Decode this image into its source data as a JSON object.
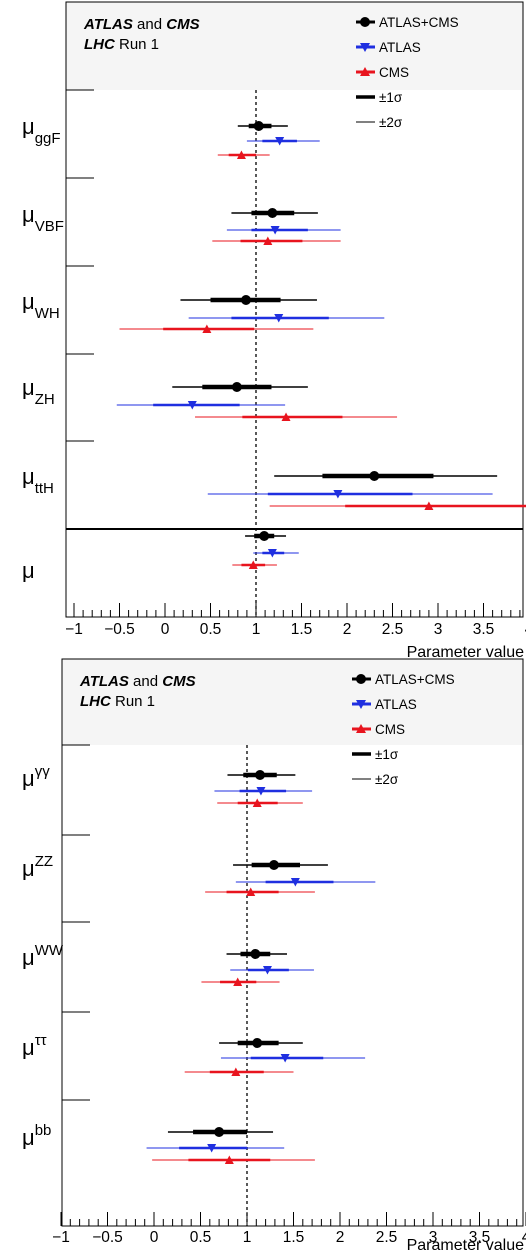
{
  "colors": {
    "combined": "#000000",
    "atlas": "#1f2fe0",
    "cms": "#e8141e",
    "header_bg": "#f5f5f5"
  },
  "x_axis_label": "Parameter value",
  "x_ticks": [
    "−1",
    "−0.5",
    "0",
    "0.5",
    "1",
    "1.5",
    "2",
    "2.5",
    "3",
    "3.5",
    "4"
  ],
  "chart_data": [
    {
      "type": "forest",
      "header": {
        "line1_bold": "ATLAS",
        "line1_plain": " and ",
        "line1_bold2": "CMS",
        "line2_bold": "LHC",
        "line2_plain": " Run 1"
      },
      "legend": [
        "ATLAS+CMS",
        "ATLAS",
        "CMS",
        "±1σ",
        "±2σ"
      ],
      "xlim": [
        -1,
        4
      ],
      "reference_line": 1,
      "rows": [
        {
          "base": "μ",
          "sub": "ggF",
          "sup": "",
          "entries": [
            {
              "series": "ATLAS+CMS",
              "value": 1.03,
              "s1": [
                0.92,
                1.17
              ],
              "s2": [
                0.8,
                1.35
              ]
            },
            {
              "series": "ATLAS",
              "value": 1.26,
              "s1": [
                1.07,
                1.45
              ],
              "s2": [
                0.9,
                1.7
              ]
            },
            {
              "series": "CMS",
              "value": 0.84,
              "s1": [
                0.7,
                1.0
              ],
              "s2": [
                0.58,
                1.15
              ]
            }
          ]
        },
        {
          "base": "μ",
          "sub": "VBF",
          "sup": "",
          "entries": [
            {
              "series": "ATLAS+CMS",
              "value": 1.18,
              "s1": [
                0.95,
                1.42
              ],
              "s2": [
                0.73,
                1.68
              ]
            },
            {
              "series": "ATLAS",
              "value": 1.21,
              "s1": [
                0.95,
                1.57
              ],
              "s2": [
                0.68,
                1.93
              ]
            },
            {
              "series": "CMS",
              "value": 1.13,
              "s1": [
                0.83,
                1.51
              ],
              "s2": [
                0.52,
                1.93
              ]
            }
          ]
        },
        {
          "base": "μ",
          "sub": "WH",
          "sup": "",
          "entries": [
            {
              "series": "ATLAS+CMS",
              "value": 0.89,
              "s1": [
                0.5,
                1.27
              ],
              "s2": [
                0.17,
                1.67
              ]
            },
            {
              "series": "ATLAS",
              "value": 1.25,
              "s1": [
                0.73,
                1.8
              ],
              "s2": [
                0.26,
                2.41
              ]
            },
            {
              "series": "CMS",
              "value": 0.46,
              "s1": [
                -0.02,
                0.98
              ],
              "s2": [
                -0.5,
                1.63
              ]
            }
          ]
        },
        {
          "base": "μ",
          "sub": "ZH",
          "sup": "",
          "entries": [
            {
              "series": "ATLAS+CMS",
              "value": 0.79,
              "s1": [
                0.41,
                1.17
              ],
              "s2": [
                0.08,
                1.57
              ]
            },
            {
              "series": "ATLAS",
              "value": 0.3,
              "s1": [
                -0.13,
                0.82
              ],
              "s2": [
                -0.53,
                1.32
              ]
            },
            {
              "series": "CMS",
              "value": 1.33,
              "s1": [
                0.85,
                1.95
              ],
              "s2": [
                0.33,
                2.55
              ]
            }
          ]
        },
        {
          "base": "μ",
          "sub": "ttH",
          "sup": "",
          "entries": [
            {
              "series": "ATLAS+CMS",
              "value": 2.3,
              "s1": [
                1.73,
                2.95
              ],
              "s2": [
                1.2,
                3.65
              ]
            },
            {
              "series": "ATLAS",
              "value": 1.9,
              "s1": [
                1.13,
                2.72
              ],
              "s2": [
                0.47,
                3.6
              ]
            },
            {
              "series": "CMS",
              "value": 2.9,
              "s1": [
                1.98,
                4.0
              ],
              "s2": [
                1.15,
                4.0
              ]
            }
          ]
        },
        {
          "base": "μ",
          "sub": "",
          "sup": "",
          "separated": true,
          "entries": [
            {
              "series": "ATLAS+CMS",
              "value": 1.09,
              "s1": [
                0.98,
                1.2
              ],
              "s2": [
                0.88,
                1.33
              ]
            },
            {
              "series": "ATLAS",
              "value": 1.18,
              "s1": [
                1.07,
                1.31
              ],
              "s2": [
                0.97,
                1.47
              ]
            },
            {
              "series": "CMS",
              "value": 0.97,
              "s1": [
                0.84,
                1.1
              ],
              "s2": [
                0.74,
                1.23
              ]
            }
          ]
        }
      ]
    },
    {
      "type": "forest",
      "header": {
        "line1_bold": "ATLAS",
        "line1_plain": " and ",
        "line1_bold2": "CMS",
        "line2_bold": "LHC",
        "line2_plain": " Run 1"
      },
      "legend": [
        "ATLAS+CMS",
        "ATLAS",
        "CMS",
        "±1σ",
        "±2σ"
      ],
      "xlim": [
        -1,
        4
      ],
      "reference_line": 1,
      "rows": [
        {
          "base": "μ",
          "sub": "",
          "sup": "γγ",
          "entries": [
            {
              "series": "ATLAS+CMS",
              "value": 1.14,
              "s1": [
                0.96,
                1.32
              ],
              "s2": [
                0.79,
                1.52
              ]
            },
            {
              "series": "ATLAS",
              "value": 1.15,
              "s1": [
                0.92,
                1.42
              ],
              "s2": [
                0.65,
                1.7
              ]
            },
            {
              "series": "CMS",
              "value": 1.11,
              "s1": [
                0.9,
                1.33
              ],
              "s2": [
                0.68,
                1.6
              ]
            }
          ]
        },
        {
          "base": "μ",
          "sub": "",
          "sup": "ZZ",
          "entries": [
            {
              "series": "ATLAS+CMS",
              "value": 1.29,
              "s1": [
                1.05,
                1.57
              ],
              "s2": [
                0.85,
                1.87
              ]
            },
            {
              "series": "ATLAS",
              "value": 1.52,
              "s1": [
                1.2,
                1.93
              ],
              "s2": [
                0.88,
                2.38
              ]
            },
            {
              "series": "CMS",
              "value": 1.04,
              "s1": [
                0.78,
                1.34
              ],
              "s2": [
                0.55,
                1.73
              ]
            }
          ]
        },
        {
          "base": "μ",
          "sub": "",
          "sup": "WW",
          "entries": [
            {
              "series": "ATLAS+CMS",
              "value": 1.09,
              "s1": [
                0.93,
                1.25
              ],
              "s2": [
                0.78,
                1.43
              ]
            },
            {
              "series": "ATLAS",
              "value": 1.22,
              "s1": [
                1.01,
                1.45
              ],
              "s2": [
                0.82,
                1.72
              ]
            },
            {
              "series": "CMS",
              "value": 0.9,
              "s1": [
                0.71,
                1.1
              ],
              "s2": [
                0.51,
                1.35
              ]
            }
          ]
        },
        {
          "base": "μ",
          "sub": "",
          "sup": "ττ",
          "entries": [
            {
              "series": "ATLAS+CMS",
              "value": 1.11,
              "s1": [
                0.9,
                1.34
              ],
              "s2": [
                0.7,
                1.6
              ]
            },
            {
              "series": "ATLAS",
              "value": 1.41,
              "s1": [
                1.04,
                1.82
              ],
              "s2": [
                0.72,
                2.27
              ]
            },
            {
              "series": "CMS",
              "value": 0.88,
              "s1": [
                0.6,
                1.18
              ],
              "s2": [
                0.33,
                1.5
              ]
            }
          ]
        },
        {
          "base": "μ",
          "sub": "",
          "sup": "bb",
          "entries": [
            {
              "series": "ATLAS+CMS",
              "value": 0.7,
              "s1": [
                0.42,
                1.0
              ],
              "s2": [
                0.15,
                1.28
              ]
            },
            {
              "series": "ATLAS",
              "value": 0.62,
              "s1": [
                0.27,
                1.0
              ],
              "s2": [
                -0.08,
                1.4
              ]
            },
            {
              "series": "CMS",
              "value": 0.81,
              "s1": [
                0.37,
                1.25
              ],
              "s2": [
                -0.02,
                1.73
              ]
            }
          ]
        }
      ]
    }
  ]
}
